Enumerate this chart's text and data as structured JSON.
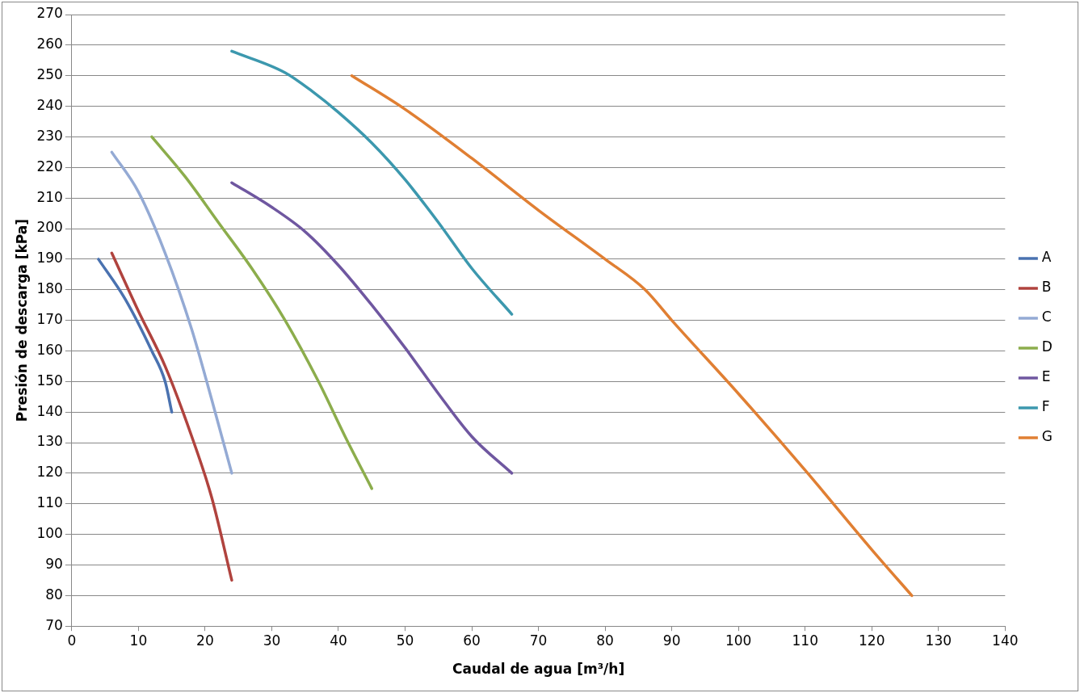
{
  "chart_data": {
    "type": "line",
    "xlabel": "Caudal de agua [m³/h]",
    "ylabel": "Presión de descarga [kPa]",
    "xlim": [
      0,
      140
    ],
    "xticks": [
      0,
      10,
      20,
      30,
      40,
      50,
      60,
      70,
      80,
      90,
      100,
      110,
      120,
      130,
      140
    ],
    "ylim": [
      70,
      270
    ],
    "yticks": [
      70,
      80,
      90,
      100,
      110,
      120,
      130,
      140,
      150,
      160,
      170,
      180,
      190,
      200,
      210,
      220,
      230,
      240,
      250,
      260,
      270
    ],
    "grid": "y",
    "legend": "right",
    "marker": "none",
    "line_style": "solid",
    "series": [
      {
        "name": "A",
        "color": "#4a72b0",
        "x": [
          4,
          8,
          12,
          14,
          15
        ],
        "values": [
          190,
          177,
          160,
          150,
          140
        ]
      },
      {
        "name": "B",
        "color": "#b0433e",
        "x": [
          6,
          10,
          14,
          18,
          21,
          24
        ],
        "values": [
          192,
          173,
          155,
          132,
          112,
          85
        ]
      },
      {
        "name": "C",
        "color": "#94aad4",
        "x": [
          6,
          10,
          14,
          18,
          21,
          24
        ],
        "values": [
          225,
          212,
          192,
          167,
          144,
          120
        ]
      },
      {
        "name": "D",
        "color": "#8cad4c",
        "x": [
          12,
          17,
          22,
          27,
          32,
          37,
          41,
          45
        ],
        "values": [
          230,
          217,
          202,
          187,
          170,
          150,
          132,
          115
        ]
      },
      {
        "name": "E",
        "color": "#6f57a0",
        "x": [
          24,
          30,
          35,
          40,
          45,
          50,
          55,
          60,
          66
        ],
        "values": [
          215,
          207,
          199,
          188,
          175,
          161,
          146,
          132,
          120
        ]
      },
      {
        "name": "F",
        "color": "#3c98ae",
        "x": [
          24,
          32,
          36,
          40,
          45,
          50,
          55,
          60,
          66
        ],
        "values": [
          258,
          251,
          245,
          238,
          228,
          216,
          202,
          187,
          172
        ]
      },
      {
        "name": "G",
        "color": "#e07f33",
        "x": [
          42,
          50,
          60,
          70,
          80,
          86,
          90,
          100,
          110,
          120,
          126
        ],
        "values": [
          250,
          239,
          223,
          206,
          190,
          180,
          170,
          146,
          121,
          95,
          80
        ]
      }
    ]
  }
}
